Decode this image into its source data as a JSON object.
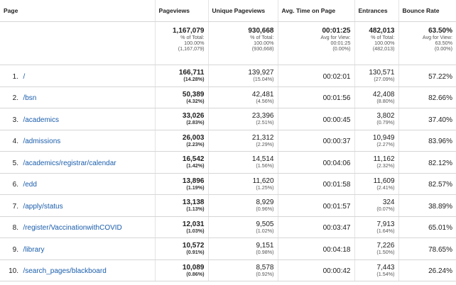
{
  "headers": {
    "page": "Page",
    "pageviews": "Pageviews",
    "unique_pageviews": "Unique Pageviews",
    "avg_time": "Avg. Time on Page",
    "entrances": "Entrances",
    "bounce_rate": "Bounce Rate"
  },
  "totals": {
    "pageviews": {
      "value": "1,167,079",
      "l1": "% of Total:",
      "l2": "100.00%",
      "l3": "(1,167,079)"
    },
    "unique_pageviews": {
      "value": "930,668",
      "l1": "% of Total:",
      "l2": "100.00%",
      "l3": "(930,668)"
    },
    "avg_time": {
      "value": "00:01:25",
      "l1": "Avg for View:",
      "l2": "00:01:25",
      "l3": "(0.00%)"
    },
    "entrances": {
      "value": "482,013",
      "l1": "% of Total:",
      "l2": "100.00%",
      "l3": "(482,013)"
    },
    "bounce_rate": {
      "value": "63.50%",
      "l1": "Avg for View:",
      "l2": "63.50%",
      "l3": "(0.00%)"
    }
  },
  "rows": [
    {
      "rank": "1.",
      "page": "/",
      "pv": "166,711",
      "pv_pct": "(14.28%)",
      "upv": "139,927",
      "upv_pct": "(15.04%)",
      "avg": "00:02:01",
      "ent": "130,571",
      "ent_pct": "(27.09%)",
      "br": "57.22%"
    },
    {
      "rank": "2.",
      "page": "/bsn",
      "pv": "50,389",
      "pv_pct": "(4.32%)",
      "upv": "42,481",
      "upv_pct": "(4.56%)",
      "avg": "00:01:56",
      "ent": "42,408",
      "ent_pct": "(8.80%)",
      "br": "82.66%"
    },
    {
      "rank": "3.",
      "page": "/academics",
      "pv": "33,026",
      "pv_pct": "(2.83%)",
      "upv": "23,396",
      "upv_pct": "(2.51%)",
      "avg": "00:00:45",
      "ent": "3,802",
      "ent_pct": "(0.79%)",
      "br": "37.40%"
    },
    {
      "rank": "4.",
      "page": "/admissions",
      "pv": "26,003",
      "pv_pct": "(2.23%)",
      "upv": "21,312",
      "upv_pct": "(2.29%)",
      "avg": "00:00:37",
      "ent": "10,949",
      "ent_pct": "(2.27%)",
      "br": "83.96%"
    },
    {
      "rank": "5.",
      "page": "/academics/registrar/calendar",
      "pv": "16,542",
      "pv_pct": "(1.42%)",
      "upv": "14,514",
      "upv_pct": "(1.56%)",
      "avg": "00:04:06",
      "ent": "11,162",
      "ent_pct": "(2.32%)",
      "br": "82.12%"
    },
    {
      "rank": "6.",
      "page": "/edd",
      "pv": "13,896",
      "pv_pct": "(1.19%)",
      "upv": "11,620",
      "upv_pct": "(1.25%)",
      "avg": "00:01:58",
      "ent": "11,609",
      "ent_pct": "(2.41%)",
      "br": "82.57%"
    },
    {
      "rank": "7.",
      "page": "/apply/status",
      "pv": "13,138",
      "pv_pct": "(1.13%)",
      "upv": "8,929",
      "upv_pct": "(0.96%)",
      "avg": "00:01:57",
      "ent": "324",
      "ent_pct": "(0.07%)",
      "br": "38.89%"
    },
    {
      "rank": "8.",
      "page": "/register/VaccinationwithCOVID",
      "pv": "12,031",
      "pv_pct": "(1.03%)",
      "upv": "9,505",
      "upv_pct": "(1.02%)",
      "avg": "00:03:47",
      "ent": "7,913",
      "ent_pct": "(1.64%)",
      "br": "65.01%"
    },
    {
      "rank": "9.",
      "page": "/library",
      "pv": "10,572",
      "pv_pct": "(0.91%)",
      "upv": "9,151",
      "upv_pct": "(0.98%)",
      "avg": "00:04:18",
      "ent": "7,226",
      "ent_pct": "(1.50%)",
      "br": "78.65%"
    },
    {
      "rank": "10.",
      "page": "/search_pages/blackboard",
      "pv": "10,089",
      "pv_pct": "(0.86%)",
      "upv": "8,578",
      "upv_pct": "(0.92%)",
      "avg": "00:00:42",
      "ent": "7,443",
      "ent_pct": "(1.54%)",
      "br": "26.24%"
    }
  ],
  "colors": {
    "link": "#1a5dab",
    "text": "#212121",
    "border": "#d6d6d6"
  }
}
